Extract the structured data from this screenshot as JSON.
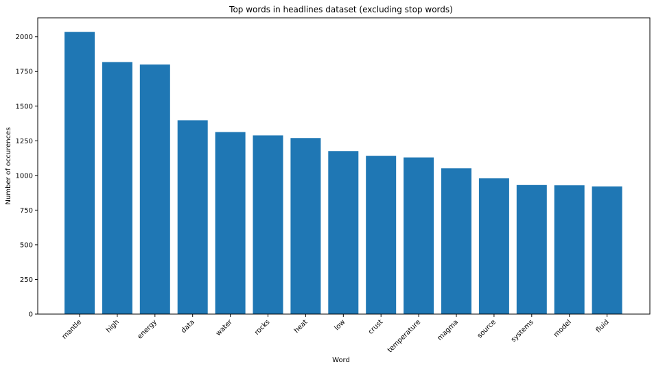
{
  "chart_data": {
    "type": "bar",
    "title": "Top words in headlines dataset (excluding stop words)",
    "xlabel": "Word",
    "ylabel": "Number of occurences",
    "categories": [
      "mantle",
      "high",
      "energy",
      "data",
      "water",
      "rocks",
      "heat",
      "low",
      "crust",
      "temperature",
      "magma",
      "source",
      "systems",
      "model",
      "fluid"
    ],
    "values": [
      2035,
      1818,
      1800,
      1398,
      1313,
      1289,
      1270,
      1176,
      1142,
      1130,
      1052,
      979,
      931,
      929,
      921
    ],
    "ylim": [
      0,
      2137
    ],
    "yticks": [
      0,
      250,
      500,
      750,
      1000,
      1250,
      1500,
      1750,
      2000
    ],
    "bar_color": "#1f77b4",
    "grid": false,
    "legend": "none"
  }
}
